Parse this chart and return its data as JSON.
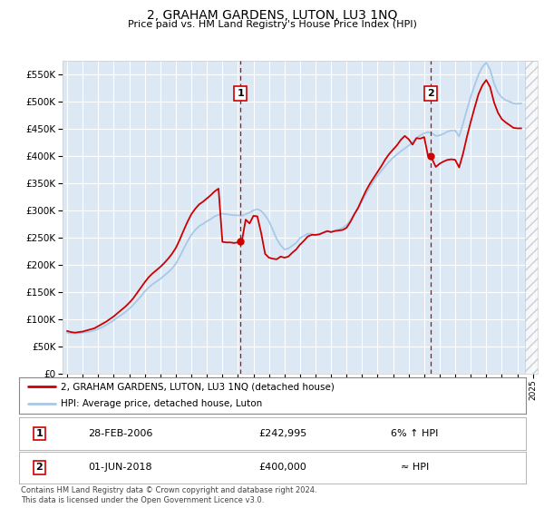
{
  "title": "2, GRAHAM GARDENS, LUTON, LU3 1NQ",
  "subtitle": "Price paid vs. HM Land Registry's House Price Index (HPI)",
  "ylim": [
    0,
    575000
  ],
  "yticks": [
    0,
    50000,
    100000,
    150000,
    200000,
    250000,
    300000,
    350000,
    400000,
    450000,
    500000,
    550000
  ],
  "ytick_labels": [
    "£0",
    "£50K",
    "£100K",
    "£150K",
    "£200K",
    "£250K",
    "£300K",
    "£350K",
    "£400K",
    "£450K",
    "£500K",
    "£550K"
  ],
  "background_color": "#dce9f5",
  "grid_color": "#ffffff",
  "hpi_color": "#a8c8e8",
  "price_color": "#cc0000",
  "sale1_x": 2006.17,
  "sale1_y": 242995,
  "sale1_label": "1",
  "sale2_x": 2018.42,
  "sale2_y": 400000,
  "sale2_label": "2",
  "legend_line1": "2, GRAHAM GARDENS, LUTON, LU3 1NQ (detached house)",
  "legend_line2": "HPI: Average price, detached house, Luton",
  "table_row1_num": "1",
  "table_row1_date": "28-FEB-2006",
  "table_row1_price": "£242,995",
  "table_row1_hpi": "6% ↑ HPI",
  "table_row2_num": "2",
  "table_row2_date": "01-JUN-2018",
  "table_row2_price": "£400,000",
  "table_row2_hpi": "≈ HPI",
  "footer": "Contains HM Land Registry data © Crown copyright and database right 2024.\nThis data is licensed under the Open Government Licence v3.0.",
  "hpi_data_x": [
    1995.0,
    1995.25,
    1995.5,
    1995.75,
    1996.0,
    1996.25,
    1996.5,
    1996.75,
    1997.0,
    1997.25,
    1997.5,
    1997.75,
    1998.0,
    1998.25,
    1998.5,
    1998.75,
    1999.0,
    1999.25,
    1999.5,
    1999.75,
    2000.0,
    2000.25,
    2000.5,
    2000.75,
    2001.0,
    2001.25,
    2001.5,
    2001.75,
    2002.0,
    2002.25,
    2002.5,
    2002.75,
    2003.0,
    2003.25,
    2003.5,
    2003.75,
    2004.0,
    2004.25,
    2004.5,
    2004.75,
    2005.0,
    2005.25,
    2005.5,
    2005.75,
    2006.0,
    2006.25,
    2006.5,
    2006.75,
    2007.0,
    2007.25,
    2007.5,
    2007.75,
    2008.0,
    2008.25,
    2008.5,
    2008.75,
    2009.0,
    2009.25,
    2009.5,
    2009.75,
    2010.0,
    2010.25,
    2010.5,
    2010.75,
    2011.0,
    2011.25,
    2011.5,
    2011.75,
    2012.0,
    2012.25,
    2012.5,
    2012.75,
    2013.0,
    2013.25,
    2013.5,
    2013.75,
    2014.0,
    2014.25,
    2014.5,
    2014.75,
    2015.0,
    2015.25,
    2015.5,
    2015.75,
    2016.0,
    2016.25,
    2016.5,
    2016.75,
    2017.0,
    2017.25,
    2017.5,
    2017.75,
    2018.0,
    2018.25,
    2018.5,
    2018.75,
    2019.0,
    2019.25,
    2019.5,
    2019.75,
    2020.0,
    2020.25,
    2020.5,
    2020.75,
    2021.0,
    2021.25,
    2021.5,
    2021.75,
    2022.0,
    2022.25,
    2022.5,
    2022.75,
    2023.0,
    2023.25,
    2023.5,
    2023.75,
    2024.0,
    2024.25
  ],
  "hpi_data_y": [
    75000,
    74000,
    73500,
    74000,
    75000,
    76000,
    77000,
    79000,
    82000,
    85000,
    89000,
    93000,
    98000,
    103000,
    108000,
    113000,
    119000,
    126000,
    134000,
    142000,
    151000,
    158000,
    164000,
    169000,
    174000,
    180000,
    186000,
    193000,
    202000,
    215000,
    229000,
    243000,
    255000,
    264000,
    271000,
    275000,
    280000,
    284000,
    289000,
    292000,
    294000,
    293000,
    292000,
    291000,
    291000,
    290000,
    293000,
    296000,
    300000,
    302000,
    299000,
    291000,
    280000,
    264000,
    247000,
    236000,
    228000,
    230000,
    235000,
    240000,
    249000,
    253000,
    257000,
    257000,
    254000,
    256000,
    259000,
    261000,
    261000,
    263000,
    265000,
    268000,
    273000,
    282000,
    293000,
    304000,
    317000,
    330000,
    343000,
    354000,
    364000,
    373000,
    382000,
    390000,
    397000,
    403000,
    409000,
    414000,
    419000,
    426000,
    433000,
    438000,
    442000,
    444000,
    442000,
    437000,
    438000,
    441000,
    445000,
    447000,
    447000,
    436000,
    459000,
    485000,
    509000,
    530000,
    550000,
    564000,
    572000,
    559000,
    534000,
    517000,
    508000,
    503000,
    500000,
    497000,
    496000,
    497000
  ],
  "price_data_x": [
    1995.0,
    1995.25,
    1995.5,
    1995.75,
    1996.0,
    1996.25,
    1996.5,
    1996.75,
    1997.0,
    1997.25,
    1997.5,
    1997.75,
    1998.0,
    1998.25,
    1998.5,
    1998.75,
    1999.0,
    1999.25,
    1999.5,
    1999.75,
    2000.0,
    2000.25,
    2000.5,
    2000.75,
    2001.0,
    2001.25,
    2001.5,
    2001.75,
    2002.0,
    2002.25,
    2002.5,
    2002.75,
    2003.0,
    2003.25,
    2003.5,
    2003.75,
    2004.0,
    2004.25,
    2004.5,
    2004.75,
    2005.0,
    2005.25,
    2005.5,
    2005.75,
    2006.0,
    2006.25,
    2006.5,
    2006.75,
    2007.0,
    2007.25,
    2007.5,
    2007.75,
    2008.0,
    2008.25,
    2008.5,
    2008.75,
    2009.0,
    2009.25,
    2009.5,
    2009.75,
    2010.0,
    2010.25,
    2010.5,
    2010.75,
    2011.0,
    2011.25,
    2011.5,
    2011.75,
    2012.0,
    2012.25,
    2012.5,
    2012.75,
    2013.0,
    2013.25,
    2013.5,
    2013.75,
    2014.0,
    2014.25,
    2014.5,
    2014.75,
    2015.0,
    2015.25,
    2015.5,
    2015.75,
    2016.0,
    2016.25,
    2016.5,
    2016.75,
    2017.0,
    2017.25,
    2017.5,
    2017.75,
    2018.0,
    2018.25,
    2018.5,
    2018.75,
    2019.0,
    2019.25,
    2019.5,
    2019.75,
    2020.0,
    2020.25,
    2020.5,
    2020.75,
    2021.0,
    2021.25,
    2021.5,
    2021.75,
    2022.0,
    2022.25,
    2022.5,
    2022.75,
    2023.0,
    2023.25,
    2023.5,
    2023.75,
    2024.0,
    2024.25
  ],
  "price_data_y": [
    78000,
    76000,
    75000,
    76000,
    77000,
    79000,
    81000,
    83000,
    87000,
    91000,
    95000,
    100000,
    105000,
    111000,
    117000,
    123000,
    130000,
    138000,
    148000,
    158000,
    168000,
    177000,
    184000,
    190000,
    196000,
    203000,
    211000,
    220000,
    231000,
    246000,
    263000,
    279000,
    293000,
    303000,
    311000,
    316000,
    322000,
    328000,
    335000,
    340000,
    242000,
    241000,
    241000,
    240000,
    241000,
    243000,
    283000,
    276000,
    290000,
    289000,
    258000,
    220000,
    213000,
    211000,
    210000,
    215000,
    213000,
    215000,
    222000,
    228000,
    237000,
    244000,
    252000,
    255000,
    255000,
    256000,
    259000,
    262000,
    260000,
    262000,
    263000,
    264000,
    268000,
    279000,
    293000,
    305000,
    321000,
    336000,
    349000,
    360000,
    371000,
    382000,
    394000,
    404000,
    412000,
    420000,
    430000,
    437000,
    431000,
    421000,
    433000,
    432000,
    435000,
    400000,
    395000,
    380000,
    386000,
    390000,
    393000,
    394000,
    393000,
    379000,
    404000,
    435000,
    463000,
    489000,
    514000,
    530000,
    540000,
    527000,
    499000,
    480000,
    468000,
    462000,
    457000,
    452000,
    451000,
    451000
  ],
  "xlim_left": 1994.7,
  "xlim_right": 2025.3
}
